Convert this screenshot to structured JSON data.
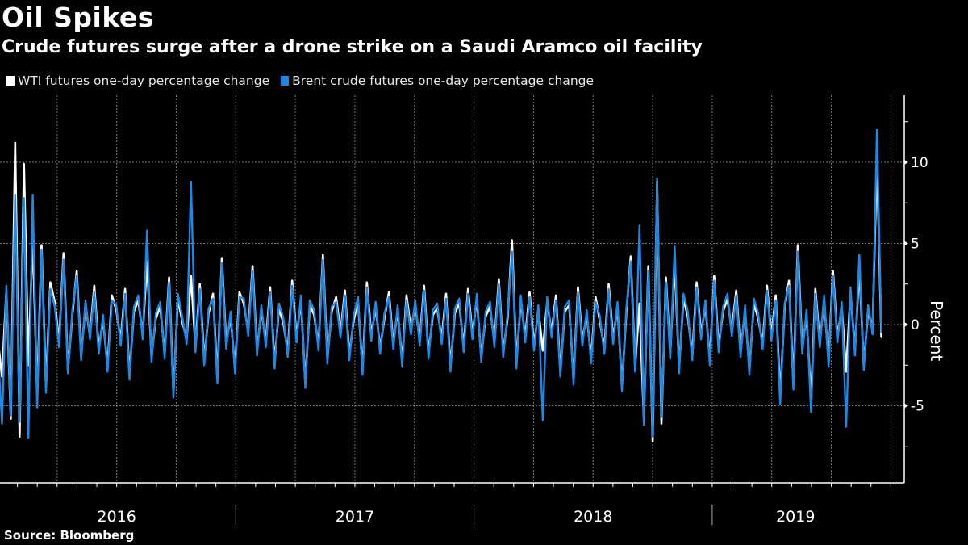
{
  "header": {
    "title": "Oil Spikes",
    "subtitle": "Crude futures surge after a drone strike on a Saudi Aramco oil facility"
  },
  "legend": [
    {
      "label": "WTI futures one-day percentage change",
      "color": "#ffffff"
    },
    {
      "label": "Brent crude futures one-day percentage change",
      "color": "#1e88e5"
    }
  ],
  "footer": {
    "source": "Source: Bloomberg"
  },
  "chart_data": {
    "type": "line",
    "title": "Oil Spikes",
    "subtitle": "Crude futures surge after a drone strike on a Saudi Aramco oil facility",
    "xlabel": "",
    "ylabel": "Percent",
    "ylim": [
      -9.8,
      14
    ],
    "xlim": [
      2016.0,
      2019.76
    ],
    "yticks": [
      -5,
      0,
      5,
      10
    ],
    "ytick_labels": [
      "-5",
      "0",
      "5",
      "10"
    ],
    "year_labels": [
      {
        "label": "2016",
        "center": 2016.5
      },
      {
        "label": "2017",
        "center": 2017.5
      },
      {
        "label": "2018",
        "center": 2018.5
      },
      {
        "label": "2019",
        "center": 2019.35
      }
    ],
    "year_dividers": [
      2017,
      2018,
      2019
    ],
    "grid": true,
    "legend_position": "top-left",
    "x_start": 2016.0,
    "x_end": 2019.71,
    "series": [
      {
        "name": "WTI futures one-day percentage change",
        "color": "#ffffff",
        "values": [
          -0.8,
          -3.2,
          2.1,
          -5.8,
          11.2,
          -6.9,
          9.9,
          -2.5,
          5.5,
          -4.3,
          4.9,
          -3.8,
          2.6,
          1.4,
          -1.1,
          4.4,
          -2.8,
          0.6,
          3.3,
          -1.9,
          1.2,
          -0.7,
          2.4,
          -1.5,
          0.3,
          -2.6,
          1.8,
          0.9,
          -1.0,
          2.2,
          -3.1,
          0.8,
          1.5,
          -0.6,
          3.9,
          -2.0,
          0.4,
          1.1,
          -1.8,
          2.9,
          -4.2,
          1.6,
          0.2,
          -0.9,
          3.0,
          -1.4,
          2.5,
          -2.2,
          0.7,
          1.9,
          -3.3,
          4.1,
          -1.2,
          0.5,
          -2.7,
          2.0,
          1.3,
          -0.4,
          3.6,
          -1.6,
          0.9,
          -1.1,
          2.3,
          -2.4,
          1.0,
          0.1,
          -1.7,
          2.7,
          -0.8,
          1.5,
          -3.6,
          1.2,
          0.6,
          -1.3,
          4.3,
          -2.1,
          0.8,
          1.7,
          -0.5,
          2.1,
          -1.9,
          0.3,
          1.4,
          -2.8,
          2.6,
          -0.7,
          1.1,
          -1.5,
          0.4,
          2.0,
          -1.2,
          0.9,
          -2.3,
          1.8,
          -0.3,
          1.2,
          -1.0,
          2.4,
          -1.8,
          0.6,
          1.0,
          -0.9,
          1.9,
          -2.6,
          0.7,
          1.3,
          -1.4,
          2.2,
          -0.6,
          1.6,
          -2.0,
          0.5,
          1.1,
          -1.1,
          2.8,
          -1.7,
          0.4,
          5.2,
          -2.4,
          1.5,
          -0.8,
          2.0,
          -1.3,
          0.9,
          -1.6,
          1.4,
          -0.5,
          1.8,
          -2.9,
          0.8,
          1.2,
          -3.4,
          2.3,
          -1.0,
          0.6,
          -2.1,
          1.7,
          0.2,
          -1.5,
          2.5,
          -0.9,
          1.1,
          -3.8,
          0.7,
          4.2,
          -2.6,
          1.3,
          -5.8,
          3.6,
          -7.2,
          8.8,
          -6.1,
          2.9,
          -1.8,
          3.8,
          -2.7,
          1.6,
          0.5,
          -1.9,
          2.6,
          -0.6,
          1.2,
          -2.2,
          3.0,
          -1.4,
          0.8,
          1.6,
          -0.4,
          2.1,
          -1.7,
          0.9,
          -2.8,
          1.3,
          0.4,
          -1.2,
          2.4,
          -0.7,
          1.8,
          -4.4,
          1.0,
          2.7,
          -3.7,
          4.9,
          -1.5,
          0.6,
          -4.7,
          2.2,
          -1.1,
          1.5,
          -2.3,
          3.3,
          -0.8,
          1.1,
          -2.9,
          2.0,
          -1.6,
          3.5,
          -2.5,
          0.9,
          -0.3,
          10.3,
          -0.8
        ]
      },
      {
        "name": "Brent crude futures one-day percentage change",
        "color": "#1e88e5",
        "values": [
          -1.1,
          -6.1,
          2.4,
          -5.6,
          8.0,
          -6.0,
          7.8,
          -7.0,
          8.0,
          -5.1,
          4.6,
          -4.2,
          2.2,
          1.1,
          -1.4,
          4.0,
          -3.0,
          0.9,
          3.0,
          -2.2,
          1.5,
          -0.9,
          2.0,
          -1.8,
          0.6,
          -2.9,
          1.5,
          1.2,
          -1.3,
          1.9,
          -3.4,
          1.1,
          1.8,
          -0.9,
          5.8,
          -2.3,
          0.7,
          1.4,
          -2.1,
          2.6,
          -4.5,
          1.9,
          0.5,
          -1.2,
          8.8,
          -1.7,
          2.2,
          -2.5,
          1.0,
          1.6,
          -3.6,
          3.8,
          -1.5,
          0.8,
          -3.0,
          1.7,
          1.6,
          -0.7,
          3.3,
          -1.9,
          1.2,
          -1.4,
          2.0,
          -2.7,
          1.3,
          0.4,
          -2.0,
          2.4,
          -1.1,
          1.8,
          -3.9,
          1.5,
          0.9,
          -1.6,
          4.0,
          -2.4,
          1.1,
          1.4,
          -0.8,
          1.8,
          -2.2,
          0.6,
          1.7,
          -3.1,
          2.3,
          -1.0,
          1.4,
          -1.8,
          0.7,
          1.7,
          -1.5,
          1.2,
          -2.6,
          1.5,
          -0.6,
          1.5,
          -1.3,
          2.1,
          -2.1,
          0.9,
          1.3,
          -1.2,
          1.6,
          -2.9,
          1.0,
          1.6,
          -1.7,
          1.9,
          -0.9,
          1.9,
          -2.3,
          0.8,
          1.4,
          -1.4,
          2.5,
          -2.0,
          0.7,
          4.5,
          -2.7,
          1.8,
          -1.1,
          1.7,
          -1.6,
          1.2,
          -5.9,
          1.7,
          -0.8,
          1.5,
          -3.2,
          1.1,
          1.5,
          -3.7,
          2.0,
          -1.3,
          0.9,
          -2.4,
          1.4,
          0.5,
          -1.8,
          2.2,
          -1.2,
          1.4,
          -4.1,
          1.0,
          3.9,
          -2.9,
          6.1,
          -6.2,
          3.3,
          -6.9,
          9.0,
          -5.7,
          2.6,
          -2.1,
          4.8,
          -3.0,
          1.9,
          0.8,
          -2.2,
          2.3,
          -0.9,
          1.5,
          -2.5,
          2.7,
          -1.7,
          1.1,
          1.9,
          -0.7,
          1.8,
          -2.0,
          1.2,
          -3.1,
          1.6,
          0.7,
          -1.5,
          2.1,
          -1.0,
          1.5,
          -4.9,
          1.3,
          2.4,
          -4.0,
          4.5,
          -1.8,
          0.9,
          -5.4,
          1.9,
          -1.4,
          1.8,
          -2.6,
          3.0,
          -1.1,
          1.4,
          -6.3,
          2.3,
          -1.9,
          4.3,
          -2.8,
          1.2,
          -0.6,
          12.0,
          -0.5
        ]
      }
    ]
  }
}
